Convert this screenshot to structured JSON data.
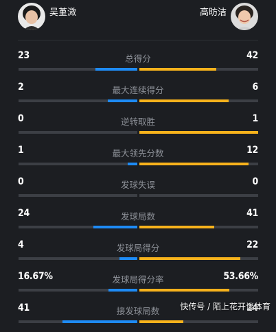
{
  "players": {
    "left": {
      "name": "吴堇溦"
    },
    "right": {
      "name": "高昉洁"
    }
  },
  "colors": {
    "left_fill": "#1e8bf5",
    "right_fill": "#f7b21c",
    "track": "#3c3f45"
  },
  "stats": [
    {
      "label": "总得分",
      "left": "23",
      "right": "42",
      "left_share": 0.35,
      "right_share": 0.65
    },
    {
      "label": "最大连续得分",
      "left": "2",
      "right": "6",
      "left_share": 0.25,
      "right_share": 0.75
    },
    {
      "label": "逆转取胜",
      "left": "0",
      "right": "1",
      "left_share": 0.0,
      "right_share": 1.0
    },
    {
      "label": "最大领先分数",
      "left": "1",
      "right": "12",
      "left_share": 0.08,
      "right_share": 0.92
    },
    {
      "label": "发球失误",
      "left": "0",
      "right": "0",
      "left_share": 0.0,
      "right_share": 0.0
    },
    {
      "label": "发球局数",
      "left": "24",
      "right": "41",
      "left_share": 0.37,
      "right_share": 0.63
    },
    {
      "label": "发球局得分",
      "left": "4",
      "right": "22",
      "left_share": 0.15,
      "right_share": 0.85
    },
    {
      "label": "发球局得分率",
      "left": "16.67%",
      "right": "53.66%",
      "left_share": 0.24,
      "right_share": 0.76
    },
    {
      "label": "接发球局数",
      "left": "41",
      "right": "24",
      "left_share": 0.63,
      "right_share": 0.37
    }
  ],
  "watermark": "快传号 / 陌上花开谈体育"
}
